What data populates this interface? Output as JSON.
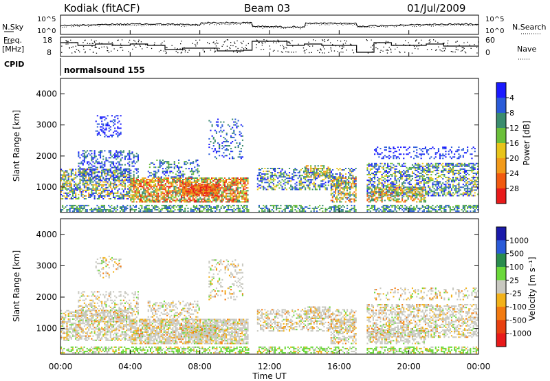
{
  "header": {
    "station": "Kodiak (fitACF)",
    "beam": "Beam 03",
    "date": "01/Jul/2009"
  },
  "top_panels": {
    "nsky_label": "N.Sky",
    "nsky_ticks": [
      "10^5",
      "10^0"
    ],
    "nsearch_label": "N.Search",
    "nsearch_ticks": [
      "10^5",
      "10^0"
    ],
    "freq_label": "Freq.",
    "freq_unit": "[MHz]",
    "freq_ticks": [
      "18",
      "8"
    ],
    "nave_label": "Nave",
    "nave_ticks": [
      "60",
      "0"
    ],
    "cpid_label": "CPID",
    "cpid_value": "normalsound 155"
  },
  "chart_data": [
    {
      "type": "heatmap",
      "title": "",
      "xlabel": "Time UT",
      "ylabel": "Slant Range [km]",
      "x_ticks": [
        "00:00",
        "04:00",
        "08:00",
        "12:00",
        "16:00",
        "20:00",
        "00:00"
      ],
      "y_ticks": [
        "1000",
        "2000",
        "3000",
        "4000"
      ],
      "ylim": [
        180,
        4500
      ],
      "colorbar": {
        "label": "Power [dB]",
        "ticks": [
          "4",
          "8",
          "12",
          "16",
          "20",
          "24",
          "28"
        ],
        "colors": [
          "#1a1aff",
          "#2a5bd8",
          "#3a8c6e",
          "#6bbf3a",
          "#e8c41a",
          "#f29a1a",
          "#f25a10",
          "#e81a1a"
        ]
      },
      "data_gaps_hours": [
        [
          10.8,
          11.2
        ],
        [
          17.05,
          17.55
        ]
      ]
    },
    {
      "type": "heatmap",
      "title": "",
      "xlabel": "Time UT",
      "ylabel": "Slant Range [km]",
      "x_ticks": [
        "00:00",
        "04:00",
        "08:00",
        "12:00",
        "16:00",
        "20:00",
        "00:00"
      ],
      "y_ticks": [
        "1000",
        "2000",
        "3000",
        "4000"
      ],
      "ylim": [
        180,
        4500
      ],
      "colorbar": {
        "label": "Velocity [m s⁻¹]",
        "ticks": [
          "1000",
          "500",
          "100",
          "25",
          "-25",
          "-100",
          "-500",
          "-1000"
        ],
        "colors": [
          "#1a1aaa",
          "#2a5bd8",
          "#2a8c4e",
          "#6bd83a",
          "#c8c8c0",
          "#f2b21a",
          "#f27a10",
          "#e84010",
          "#e81a1a"
        ]
      },
      "data_gaps_hours": [
        [
          10.8,
          11.2
        ],
        [
          17.05,
          17.55
        ]
      ]
    }
  ]
}
